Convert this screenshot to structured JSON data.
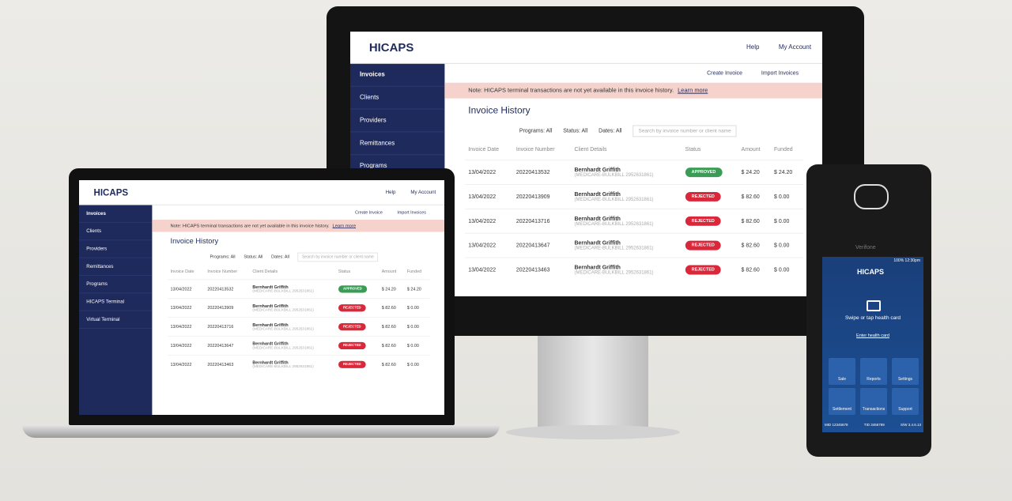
{
  "app": {
    "logo": "HICAPS",
    "header_links": [
      "Help",
      "My Account"
    ],
    "nav": [
      "Invoices",
      "Clients",
      "Providers",
      "Remittances",
      "Programs",
      "HICAPS Terminal",
      "Virtual Terminal"
    ],
    "actions": [
      "Create Invoice",
      "Import Invoices"
    ],
    "note": "Note: HICAPS terminal transactions are not yet available in this invoice history.",
    "note_link": "Learn more",
    "page_title": "Invoice History",
    "filters": [
      "Programs: All",
      "Status: All",
      "Dates: All"
    ],
    "search_placeholder": "Search by invoice number or client name",
    "table": {
      "columns": [
        "Invoice Date",
        "Invoice Number",
        "Client Details",
        "Status",
        "Amount",
        "Funded"
      ],
      "rows": [
        [
          "13/04/2022",
          "20220413532",
          "Bernhardt Griffith",
          "(MEDICARE-BULKBILL 2952631861)",
          "APPROVED",
          "$ 24.20",
          "$ 24.20"
        ],
        [
          "13/04/2022",
          "20220413909",
          "Bernhardt Griffith",
          "(MEDICARE-BULKBILL 2952631861)",
          "REJECTED",
          "$ 82.60",
          "$ 0.00"
        ],
        [
          "13/04/2022",
          "20220413716",
          "Bernhardt Griffith",
          "(MEDICARE-BULKBILL 2952631861)",
          "REJECTED",
          "$ 82.60",
          "$ 0.00"
        ],
        [
          "13/04/2022",
          "20220413647",
          "Bernhardt Griffith",
          "(MEDICARE-BULKBILL 2952631861)",
          "REJECTED",
          "$ 82.60",
          "$ 0.00"
        ],
        [
          "13/04/2022",
          "20220413463",
          "Bernhardt Griffith",
          "(MEDICARE-BULKBILL 2952631861)",
          "REJECTED",
          "$ 82.60",
          "$ 0.00"
        ]
      ]
    }
  },
  "terminal": {
    "brand": "Verifone",
    "status_bar": "100% 12:30pm",
    "logo": "HICAPS",
    "prompt": "Swipe or tap health card",
    "enter_link": "Enter health card",
    "tiles": [
      "Sale",
      "Reports",
      "Settings",
      "Settlement",
      "Transactions",
      "Support"
    ],
    "footer": [
      "MID 12345678",
      "TID 3456789",
      "S/W 3.4.6.13"
    ]
  }
}
